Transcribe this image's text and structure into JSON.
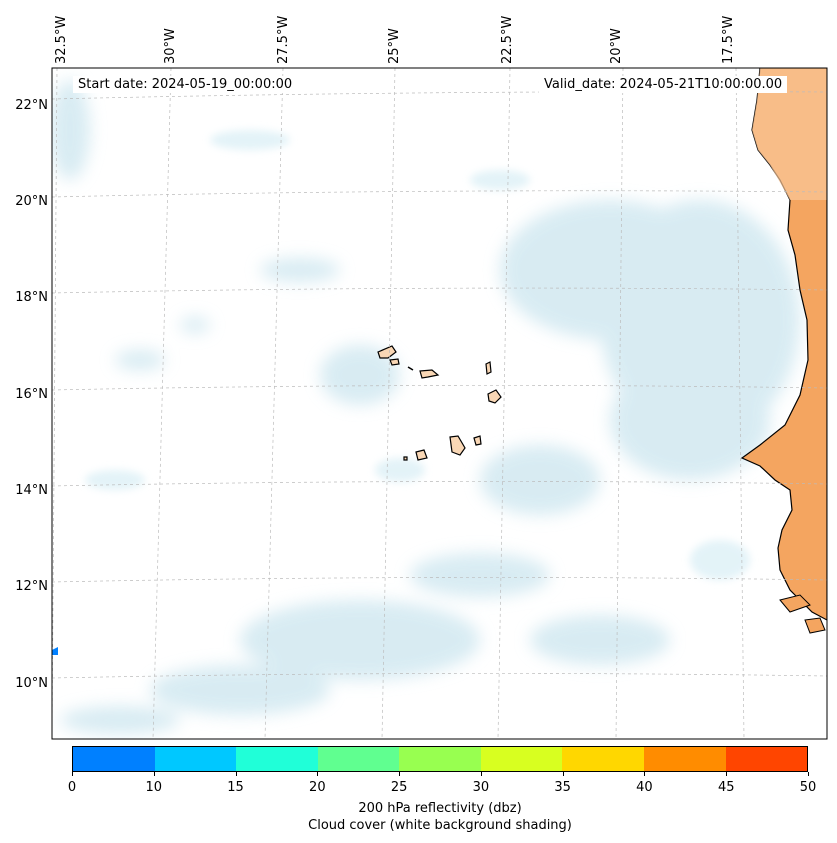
{
  "map": {
    "start_date": "Start date: 2024-05-19_00:00:00",
    "valid_date": "Valid_date: 2024-05-21T10:00:00.00",
    "lon_labels": [
      "32.5°W",
      "30°W",
      "27.5°W",
      "25°W",
      "22.5°W",
      "20°W",
      "17.5°W"
    ],
    "lat_labels": [
      "22°N",
      "20°N",
      "18°N",
      "16°N",
      "14°N",
      "12°N",
      "10°N"
    ]
  },
  "colorbar": {
    "ticks": [
      "0",
      "10",
      "15",
      "20",
      "25",
      "30",
      "35",
      "40",
      "45",
      "50"
    ],
    "colors": [
      "#0080ff",
      "#00c8ff",
      "#20ffd8",
      "#60ff90",
      "#98ff50",
      "#d8ff20",
      "#ffd700",
      "#ff8c00",
      "#ff4500"
    ],
    "label_line1": "200 hPa reflectivity (dbz)",
    "label_line2": "Cloud cover (white background shading)"
  },
  "colors": {
    "land": "#f4a560",
    "cloud": "#cfe7f0",
    "island": "#f9d7b5"
  }
}
